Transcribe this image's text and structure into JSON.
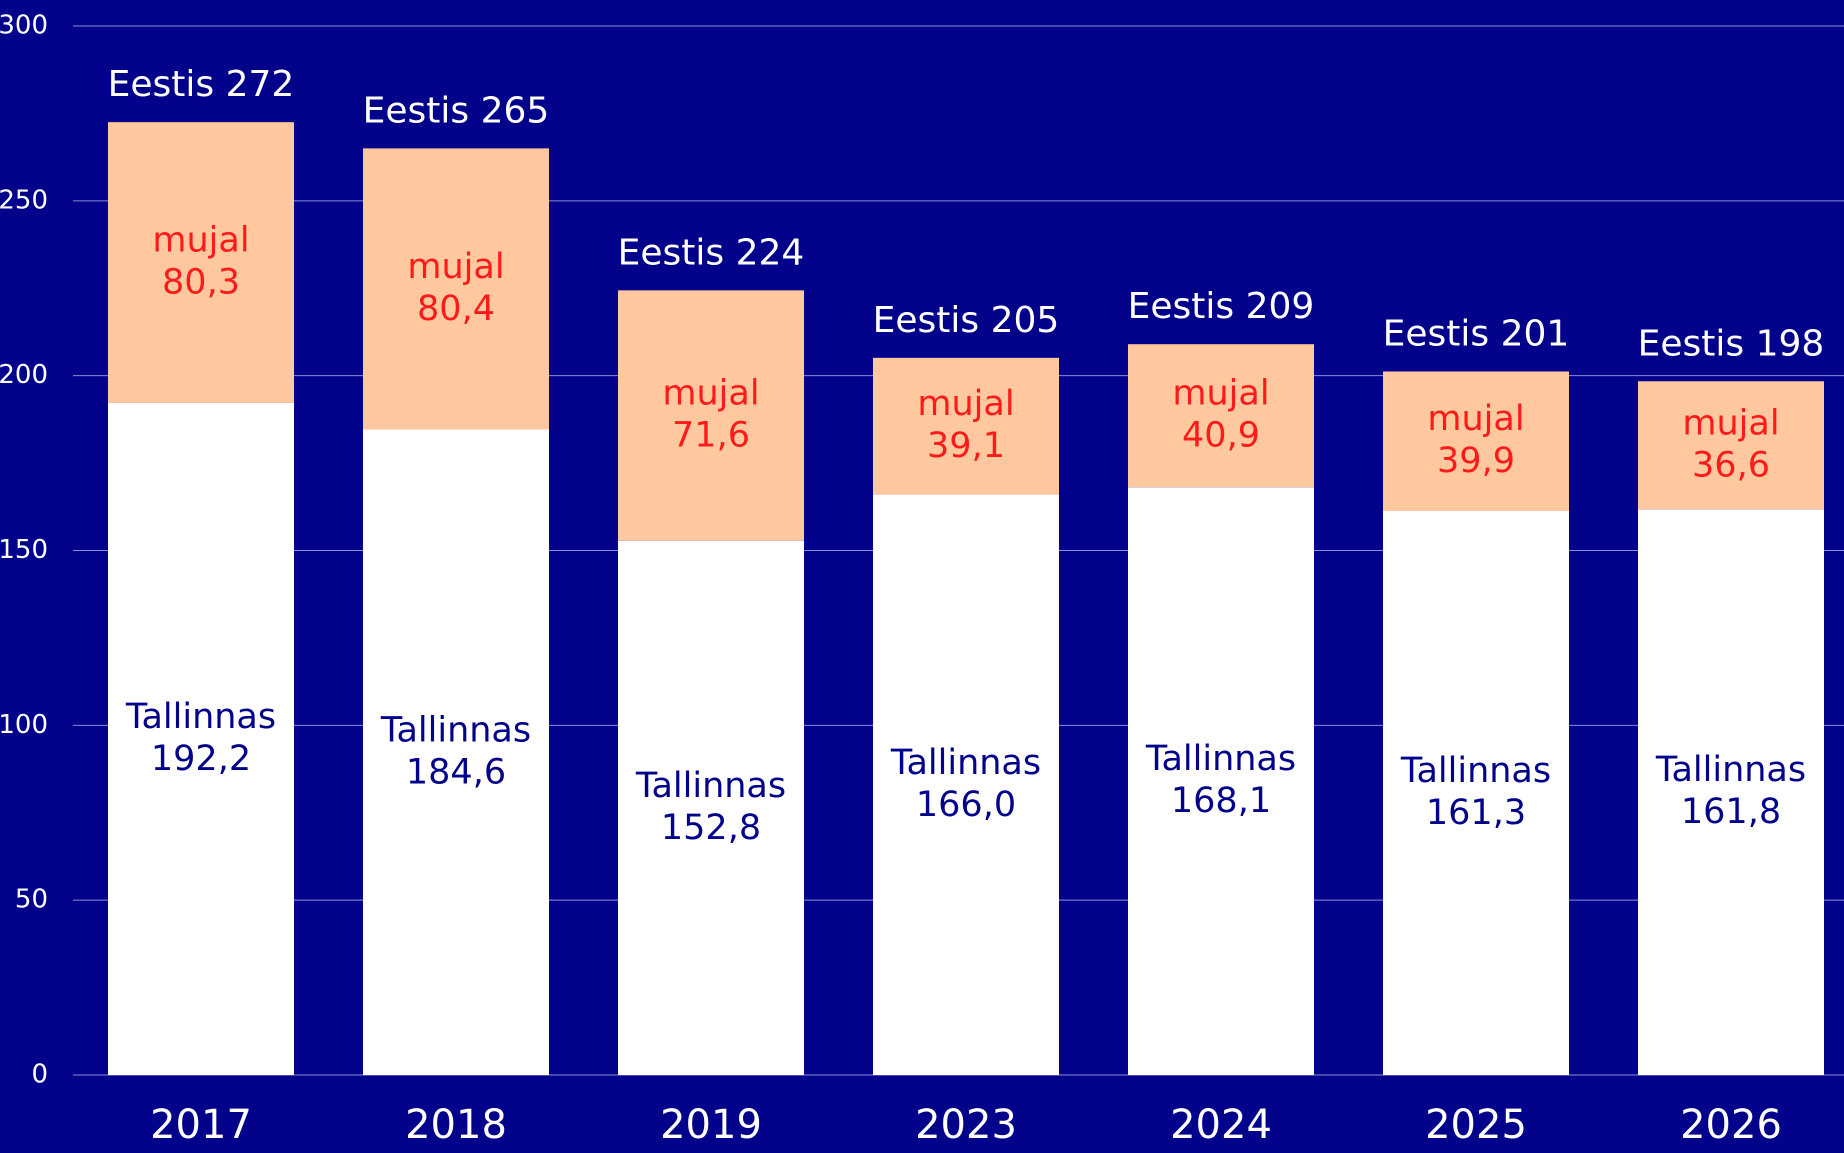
{
  "chart_data": {
    "type": "bar",
    "stacked": true,
    "categories": [
      "2017",
      "2018",
      "2019",
      "2023",
      "2024",
      "2025",
      "2026"
    ],
    "series": [
      {
        "name": "Tallinnas",
        "color": "#ffffff",
        "label_color": "#02028a",
        "values": [
          192.2,
          184.6,
          152.8,
          166.0,
          168.1,
          161.3,
          161.8
        ],
        "value_labels": [
          "192,2",
          "184,6",
          "152,8",
          "166,0",
          "168,1",
          "161,3",
          "161,8"
        ]
      },
      {
        "name": "mujal",
        "color": "#ffc89e",
        "label_color": "#ff1a1a",
        "values": [
          80.3,
          80.4,
          71.6,
          39.1,
          40.9,
          39.9,
          36.6
        ],
        "value_labels": [
          "80,3",
          "80,4",
          "71,6",
          "39,1",
          "40,9",
          "39,9",
          "36,6"
        ]
      }
    ],
    "totals": {
      "name": "Eestis",
      "values": [
        272,
        265,
        224,
        205,
        209,
        201,
        198
      ]
    },
    "ylim": [
      0,
      300
    ],
    "yticks": [
      0,
      50,
      100,
      150,
      200,
      250,
      300
    ],
    "grid": true
  }
}
